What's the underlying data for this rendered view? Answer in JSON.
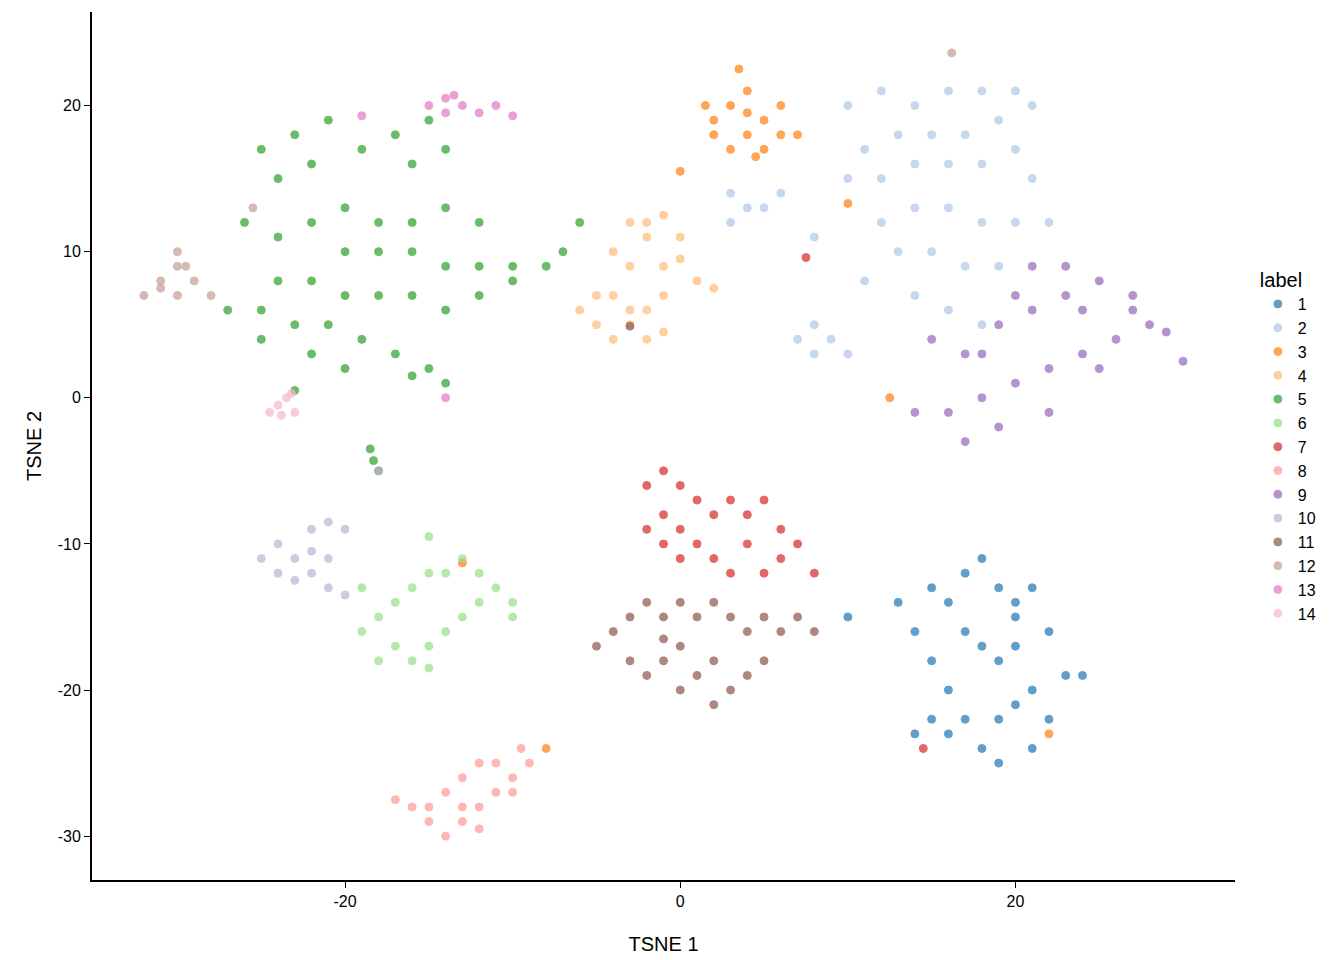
{
  "chart_data": {
    "type": "scatter",
    "x_label": "TSNE 1",
    "y_label": "TSNE 2",
    "legend_title": "label",
    "legend": "right",
    "grid": false,
    "xlim": [
      -35.1,
      33.1
    ],
    "ylim": [
      -33.0,
      26.4
    ],
    "xticks": [
      -20,
      0,
      20
    ],
    "yticks": [
      -30,
      -20,
      -10,
      0,
      10,
      20
    ],
    "series": [
      {
        "name": "1",
        "color": "#1f77b4",
        "x": [
          15,
          16,
          17,
          18,
          19,
          20,
          21,
          22,
          23,
          24,
          14,
          15,
          16,
          17,
          18,
          19,
          20,
          21,
          22,
          18,
          19,
          20,
          17,
          16,
          15,
          21,
          19,
          20,
          13,
          10,
          14
        ],
        "y": [
          -13,
          -14,
          -12,
          -11,
          -13,
          -14,
          -13,
          -16,
          -19,
          -19,
          -16,
          -18,
          -20,
          -22,
          -24,
          -22,
          -21,
          -20,
          -22,
          -17,
          -18,
          -17,
          -16,
          -23,
          -22,
          -24,
          -25,
          -15,
          -14,
          -15,
          -23
        ]
      },
      {
        "name": "2",
        "color": "#aec7e8",
        "x": [
          10,
          12,
          14,
          16,
          18,
          20,
          19,
          17,
          15,
          13,
          11,
          10,
          12,
          14,
          16,
          18,
          20,
          21,
          12,
          14,
          16,
          18,
          20,
          22,
          13,
          15,
          17,
          19,
          14,
          16,
          18,
          21,
          3,
          4,
          5,
          6,
          3,
          8,
          9,
          8,
          10,
          7,
          8,
          11
        ],
        "y": [
          20,
          21,
          20,
          21,
          21,
          21,
          19,
          18,
          18,
          18,
          17,
          15,
          15,
          16,
          16,
          16,
          17,
          15,
          12,
          13,
          13,
          12,
          12,
          12,
          10,
          10,
          9,
          9,
          7,
          6,
          5,
          20,
          14,
          13,
          13,
          14,
          12,
          5,
          4,
          3,
          3,
          4,
          11,
          8
        ]
      },
      {
        "name": "3",
        "color": "#ff7f0e",
        "x": [
          2,
          3,
          4,
          3.5,
          4,
          5,
          6,
          5,
          3,
          2,
          4,
          6,
          7,
          1.5,
          4.5,
          0,
          10,
          -8,
          12.5,
          22,
          -13
        ],
        "y": [
          19,
          20,
          21,
          22.5,
          18,
          19,
          18,
          17,
          17,
          18,
          19.5,
          20,
          18,
          20,
          16.5,
          15.5,
          13.3,
          -24,
          0,
          -23,
          -11.3
        ]
      },
      {
        "name": "4",
        "color": "#ffbb78",
        "x": [
          -3,
          -2,
          -1,
          0,
          -2,
          -4,
          -3,
          -1,
          1,
          2,
          -5,
          -4,
          -3,
          -2,
          -1,
          -5,
          -4,
          -3,
          -2,
          -1,
          -6,
          0
        ],
        "y": [
          12,
          12,
          12.5,
          11,
          11,
          10,
          9,
          9,
          8,
          7.5,
          7,
          7,
          6,
          6,
          7,
          5,
          4,
          5,
          4,
          4.5,
          6,
          9.5
        ]
      },
      {
        "name": "5",
        "color": "#2ca02c",
        "x": [
          -25,
          -23,
          -21,
          -19,
          -17,
          -15,
          -14,
          -16,
          -22,
          -24,
          -26,
          -24,
          -22,
          -20,
          -18,
          -16,
          -14,
          -12,
          -20,
          -18,
          -16,
          -14,
          -12,
          -10,
          -8,
          -6,
          -7,
          -24,
          -22,
          -20,
          -18,
          -16,
          -14,
          -12,
          -10,
          -25,
          -23,
          -21,
          -19,
          -17,
          -15,
          -16,
          -14,
          -20,
          -22,
          -25,
          -27,
          -18.5,
          -18.3,
          -18,
          -23
        ],
        "y": [
          17,
          18,
          19,
          17,
          18,
          19,
          17,
          16,
          16,
          15,
          12,
          11,
          12,
          13,
          12,
          12,
          13,
          12,
          10,
          10,
          10,
          9,
          9,
          9,
          9,
          12,
          10,
          8,
          8,
          7,
          7,
          7,
          6,
          7,
          8,
          6,
          5,
          5,
          4,
          3,
          2,
          1.5,
          1,
          2,
          3,
          4,
          6,
          -3.5,
          -4.3,
          -5,
          0.5
        ]
      },
      {
        "name": "6",
        "color": "#98df8a",
        "x": [
          -19,
          -18,
          -17,
          -16,
          -15,
          -14,
          -13,
          -12,
          -11,
          -10,
          -17,
          -16,
          -15,
          -14,
          -13,
          -12,
          -18,
          -15,
          -19,
          -10,
          -15
        ],
        "y": [
          -16,
          -15,
          -14,
          -13,
          -12,
          -12,
          -11,
          -12,
          -13,
          -14,
          -17,
          -18,
          -17,
          -16,
          -15,
          -14,
          -18,
          -9.5,
          -13,
          -15,
          -18.5
        ]
      },
      {
        "name": "7",
        "color": "#d62728",
        "x": [
          -2,
          -1,
          0,
          1,
          2,
          3,
          4,
          5,
          6,
          7,
          8,
          -2,
          -1,
          0,
          1,
          2,
          3,
          4,
          5,
          6,
          -1,
          0,
          7.5,
          14.5
        ],
        "y": [
          -6,
          -5,
          -6,
          -7,
          -8,
          -7,
          -8,
          -7,
          -9,
          -10,
          -12,
          -9,
          -10,
          -11,
          -10,
          -11,
          -12,
          -10,
          -12,
          -11,
          -8,
          -9,
          9.6,
          -24
        ]
      },
      {
        "name": "8",
        "color": "#ff9896",
        "x": [
          -16,
          -15,
          -14,
          -13,
          -12,
          -11,
          -10,
          -9,
          -14,
          -13,
          -12,
          -11,
          -15,
          -13,
          -12,
          -10,
          -9.5,
          -17
        ],
        "y": [
          -28,
          -29,
          -30,
          -29,
          -28,
          -27,
          -26,
          -25,
          -27,
          -26,
          -25,
          -25,
          -28,
          -28,
          -29.5,
          -27,
          -24,
          -27.5
        ]
      },
      {
        "name": "9",
        "color": "#9467bd",
        "x": [
          15,
          17,
          19,
          21,
          23,
          25,
          27,
          28,
          29,
          26,
          24,
          22,
          20,
          18,
          16,
          19,
          17,
          21,
          23,
          24,
          20,
          18,
          22,
          25,
          27,
          14,
          30
        ],
        "y": [
          4,
          3,
          5,
          6,
          7,
          8,
          7,
          5,
          4.5,
          4,
          3,
          2,
          1,
          0,
          -1,
          -2,
          -3,
          9,
          9,
          6,
          7,
          3,
          -1,
          2,
          6,
          -1,
          2.5
        ]
      },
      {
        "name": "10",
        "color": "#c5b0d5",
        "x": [
          -25,
          -24,
          -23,
          -22,
          -21,
          -20,
          -21,
          -22,
          -23,
          -24,
          -21,
          -20,
          -22,
          -18
        ],
        "y": [
          -11,
          -10,
          -11,
          -9,
          -8.5,
          -9,
          -11,
          -12,
          -12.5,
          -12,
          -13,
          -13.5,
          -10.5,
          -5
        ]
      },
      {
        "name": "11",
        "color": "#8c564b",
        "x": [
          -5,
          -4,
          -3,
          -2,
          -1,
          0,
          1,
          2,
          3,
          4,
          5,
          6,
          7,
          8,
          -3,
          -2,
          -1,
          0,
          1,
          2,
          3,
          4,
          5,
          2,
          0,
          -1,
          -3
        ],
        "y": [
          -17,
          -16,
          -15,
          -14,
          -15,
          -14,
          -15,
          -14,
          -15,
          -16,
          -15,
          -16,
          -15,
          -16,
          -18,
          -19,
          -18,
          -20,
          -19,
          -18,
          -20,
          -19,
          -18,
          -21,
          -17,
          -16.5,
          4.9
        ]
      },
      {
        "name": "12",
        "color": "#c49c94",
        "x": [
          -32,
          -31,
          -30,
          -30,
          -29,
          -28,
          -31,
          -30,
          -29.5,
          -25.5,
          16.2
        ],
        "y": [
          7,
          8,
          9,
          10,
          8,
          7,
          7.5,
          7,
          9,
          13,
          23.6
        ]
      },
      {
        "name": "13",
        "color": "#e377c2",
        "x": [
          -15,
          -14,
          -13,
          -12,
          -11,
          -10,
          -14,
          -13.5,
          -19,
          -14
        ],
        "y": [
          20,
          20.5,
          20,
          19.5,
          20,
          19.3,
          19.5,
          20.7,
          19.3,
          0
        ]
      },
      {
        "name": "14",
        "color": "#f7b6d2",
        "x": [
          -24,
          -23.5,
          -23,
          -24.5,
          -23.2,
          -23.8
        ],
        "y": [
          -0.5,
          0,
          -1,
          -1,
          0.3,
          -1.2
        ]
      }
    ]
  }
}
